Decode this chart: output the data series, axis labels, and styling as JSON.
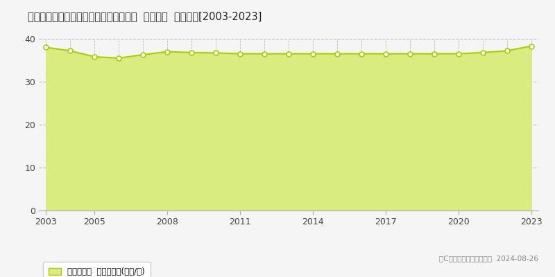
{
  "title": "愛知県豊橋市つつじが丘３丁目９番４外  基準地価  地価推移[2003-2023]",
  "years": [
    2003,
    2004,
    2005,
    2006,
    2007,
    2008,
    2009,
    2010,
    2011,
    2012,
    2013,
    2014,
    2015,
    2016,
    2017,
    2018,
    2019,
    2020,
    2021,
    2022,
    2023
  ],
  "values": [
    38.0,
    37.2,
    35.8,
    35.5,
    36.3,
    37.0,
    36.8,
    36.7,
    36.5,
    36.5,
    36.5,
    36.5,
    36.5,
    36.5,
    36.5,
    36.5,
    36.5,
    36.5,
    36.8,
    37.2,
    38.3
  ],
  "line_color": "#aacc00",
  "fill_color": "#d8ec80",
  "marker_face_color": "#ffffff",
  "marker_edge_color": "#aacc00",
  "bg_color": "#f5f5f5",
  "plot_bg_color": "#f5f5f5",
  "grid_color": "#bbbbbb",
  "ylim": [
    0,
    40
  ],
  "yticks": [
    0,
    10,
    20,
    30,
    40
  ],
  "xticks": [
    2003,
    2005,
    2008,
    2011,
    2014,
    2017,
    2020,
    2023
  ],
  "legend_label": "基準地価格  平均坪単価(万円/坪)",
  "copyright_text": "（C）土地価格ドットコム  2024-08-26"
}
